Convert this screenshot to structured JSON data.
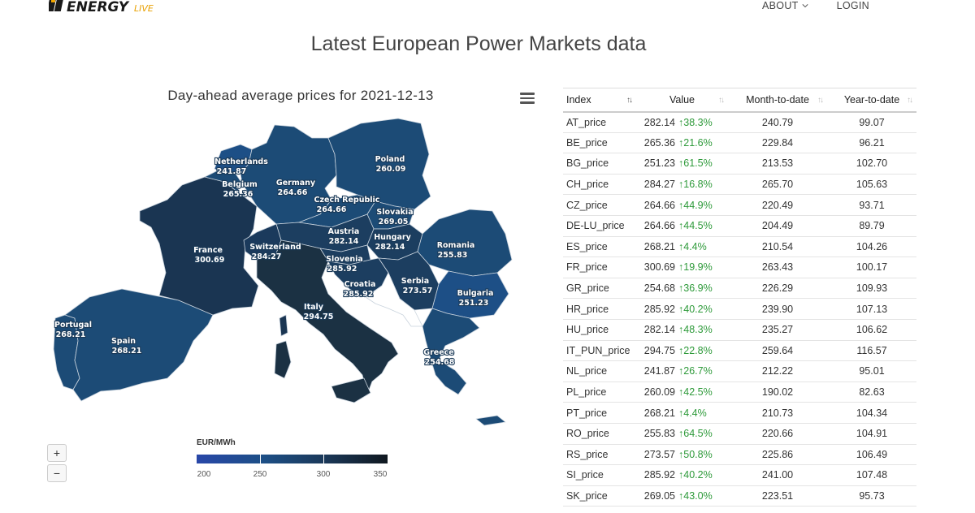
{
  "header": {
    "logo_text": "ENERGYLIVE",
    "nav": [
      {
        "label": "ABOUT"
      },
      {
        "label": "LOGIN"
      }
    ]
  },
  "page_title": "Latest European Power Markets data",
  "map": {
    "title": "Day-ahead average prices for 2021-12-13",
    "zoom_in": "+",
    "zoom_out": "−",
    "legend": {
      "title": "EUR/MWh",
      "ticks": [
        "200",
        "250",
        "300",
        "350"
      ],
      "colors": [
        "#2847a8",
        "#1d4f86",
        "#1b3a5c",
        "#101820"
      ]
    },
    "labels": [
      {
        "name": "Netherlands",
        "value": "241.87"
      },
      {
        "name": "Belgium",
        "value": "265.36"
      },
      {
        "name": "Germany",
        "value": "264.66"
      },
      {
        "name": "Poland",
        "value": "260.09"
      },
      {
        "name": "Czech Republic",
        "value": "264.66"
      },
      {
        "name": "Slovakia",
        "value": "269.05"
      },
      {
        "name": "Austria",
        "value": "282.14"
      },
      {
        "name": "Hungary",
        "value": "282.14"
      },
      {
        "name": "France",
        "value": "300.69"
      },
      {
        "name": "Switzerland",
        "value": "284.27"
      },
      {
        "name": "Slovenia",
        "value": "285.92"
      },
      {
        "name": "Croatia",
        "value": "285.92"
      },
      {
        "name": "Romania",
        "value": "255.83"
      },
      {
        "name": "Serbia",
        "value": "273.57"
      },
      {
        "name": "Bulgaria",
        "value": "251.23"
      },
      {
        "name": "Italy",
        "value": "294.75"
      },
      {
        "name": "Portugal",
        "value": "268.21"
      },
      {
        "name": "Spain",
        "value": "268.21"
      },
      {
        "name": "Greece",
        "value": "254.68"
      }
    ]
  },
  "table": {
    "headers": [
      "Index",
      "Value",
      "Month-to-date",
      "Year-to-date"
    ],
    "rows": [
      {
        "index": "AT_price",
        "value": "282.14",
        "change": "38.3%",
        "mtd": "240.79",
        "ytd": "99.07"
      },
      {
        "index": "BE_price",
        "value": "265.36",
        "change": "21.6%",
        "mtd": "229.84",
        "ytd": "96.21"
      },
      {
        "index": "BG_price",
        "value": "251.23",
        "change": "61.5%",
        "mtd": "213.53",
        "ytd": "102.70"
      },
      {
        "index": "CH_price",
        "value": "284.27",
        "change": "16.8%",
        "mtd": "265.70",
        "ytd": "105.63"
      },
      {
        "index": "CZ_price",
        "value": "264.66",
        "change": "44.9%",
        "mtd": "220.49",
        "ytd": "93.71"
      },
      {
        "index": "DE-LU_price",
        "value": "264.66",
        "change": "44.5%",
        "mtd": "204.49",
        "ytd": "89.79"
      },
      {
        "index": "ES_price",
        "value": "268.21",
        "change": "4.4%",
        "mtd": "210.54",
        "ytd": "104.26"
      },
      {
        "index": "FR_price",
        "value": "300.69",
        "change": "19.9%",
        "mtd": "263.43",
        "ytd": "100.17"
      },
      {
        "index": "GR_price",
        "value": "254.68",
        "change": "36.9%",
        "mtd": "226.29",
        "ytd": "109.93"
      },
      {
        "index": "HR_price",
        "value": "285.92",
        "change": "40.2%",
        "mtd": "239.90",
        "ytd": "107.13"
      },
      {
        "index": "HU_price",
        "value": "282.14",
        "change": "48.3%",
        "mtd": "235.27",
        "ytd": "106.62"
      },
      {
        "index": "IT_PUN_price",
        "value": "294.75",
        "change": "22.8%",
        "mtd": "259.64",
        "ytd": "116.57"
      },
      {
        "index": "NL_price",
        "value": "241.87",
        "change": "26.7%",
        "mtd": "212.22",
        "ytd": "95.01"
      },
      {
        "index": "PL_price",
        "value": "260.09",
        "change": "42.5%",
        "mtd": "190.02",
        "ytd": "82.63"
      },
      {
        "index": "PT_price",
        "value": "268.21",
        "change": "4.4%",
        "mtd": "210.73",
        "ytd": "104.34"
      },
      {
        "index": "RO_price",
        "value": "255.83",
        "change": "64.5%",
        "mtd": "220.66",
        "ytd": "104.91"
      },
      {
        "index": "RS_price",
        "value": "273.57",
        "change": "50.8%",
        "mtd": "225.86",
        "ytd": "106.49"
      },
      {
        "index": "SI_price",
        "value": "285.92",
        "change": "40.2%",
        "mtd": "241.00",
        "ytd": "107.48"
      },
      {
        "index": "SK_price",
        "value": "269.05",
        "change": "43.0%",
        "mtd": "223.51",
        "ytd": "95.73"
      }
    ]
  }
}
